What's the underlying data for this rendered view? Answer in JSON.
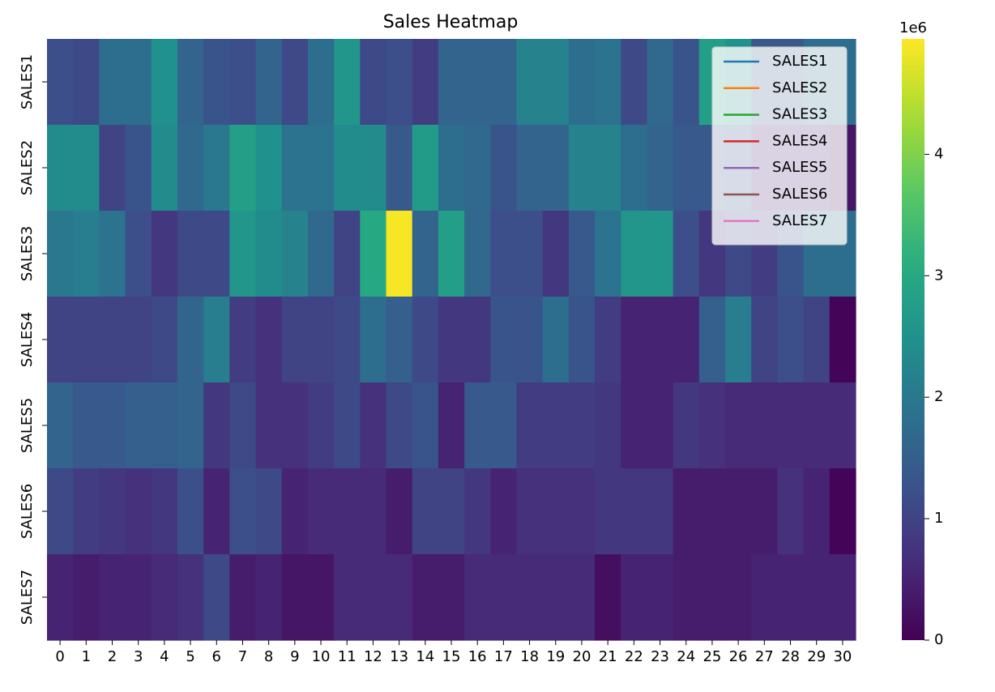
{
  "chart_data": {
    "type": "heatmap",
    "title": "Sales Heatmap",
    "xlabel": "",
    "ylabel": "",
    "x_categories": [
      "0",
      "1",
      "2",
      "3",
      "4",
      "5",
      "6",
      "7",
      "8",
      "9",
      "10",
      "11",
      "12",
      "13",
      "14",
      "15",
      "16",
      "17",
      "18",
      "19",
      "20",
      "21",
      "22",
      "23",
      "24",
      "25",
      "26",
      "27",
      "28",
      "29",
      "30"
    ],
    "y_categories": [
      "SALES1",
      "SALES2",
      "SALES3",
      "SALES4",
      "SALES5",
      "SALES6",
      "SALES7"
    ],
    "values": [
      [
        1.2,
        1.1,
        1.8,
        1.8,
        2.5,
        1.6,
        1.3,
        1.2,
        1.6,
        1.1,
        1.8,
        2.6,
        1.1,
        1.2,
        0.9,
        1.6,
        1.6,
        1.6,
        2.2,
        2.2,
        1.8,
        1.9,
        1.1,
        1.7,
        1.3,
        2.8,
        2.5,
        1.4,
        1.4,
        1.8,
        1.8
      ],
      [
        2.4,
        2.4,
        1.0,
        1.3,
        2.4,
        1.7,
        2.0,
        2.8,
        2.5,
        1.9,
        1.9,
        2.4,
        2.4,
        1.4,
        2.7,
        1.8,
        1.7,
        1.3,
        1.6,
        1.6,
        2.2,
        2.2,
        1.8,
        1.6,
        1.4,
        1.4,
        1.3,
        0.5,
        0.5,
        0.5,
        0.3
      ],
      [
        2.0,
        2.1,
        1.9,
        1.2,
        0.8,
        1.1,
        1.1,
        2.6,
        2.4,
        2.2,
        1.7,
        1.0,
        3.0,
        4.9,
        1.6,
        2.8,
        1.7,
        1.2,
        1.2,
        0.8,
        1.4,
        1.9,
        2.6,
        2.6,
        1.2,
        0.8,
        1.1,
        0.9,
        1.3,
        1.8,
        1.8
      ],
      [
        1.0,
        1.0,
        1.0,
        1.0,
        1.1,
        1.6,
        2.1,
        0.9,
        0.7,
        1.0,
        1.0,
        1.1,
        1.8,
        1.5,
        1.1,
        0.8,
        0.8,
        1.3,
        1.3,
        1.8,
        1.3,
        0.9,
        0.5,
        0.5,
        0.5,
        1.5,
        2.1,
        1.0,
        1.2,
        1.0,
        0.05
      ],
      [
        1.6,
        1.4,
        1.4,
        1.5,
        1.5,
        1.6,
        0.8,
        1.1,
        0.7,
        0.7,
        0.9,
        1.1,
        0.7,
        1.1,
        1.3,
        0.5,
        1.4,
        1.4,
        0.9,
        0.9,
        0.9,
        0.8,
        0.5,
        0.5,
        0.8,
        0.7,
        0.6,
        0.6,
        0.6,
        0.6,
        0.6
      ],
      [
        1.1,
        0.9,
        0.8,
        0.7,
        0.8,
        1.2,
        0.5,
        1.2,
        1.1,
        0.5,
        0.6,
        0.6,
        0.6,
        0.4,
        1.0,
        1.0,
        0.8,
        0.5,
        0.7,
        0.7,
        0.7,
        0.8,
        0.8,
        0.8,
        0.4,
        0.4,
        0.4,
        0.4,
        0.7,
        0.5,
        0.05
      ],
      [
        0.5,
        0.4,
        0.5,
        0.5,
        0.6,
        0.7,
        1.1,
        0.4,
        0.5,
        0.3,
        0.3,
        0.6,
        0.6,
        0.6,
        0.4,
        0.4,
        0.6,
        0.6,
        0.6,
        0.6,
        0.6,
        0.2,
        0.5,
        0.5,
        0.4,
        0.4,
        0.4,
        0.5,
        0.5,
        0.5,
        0.5
      ]
    ],
    "colorbar": {
      "range": [
        0,
        4.95
      ],
      "ticks": [
        "0",
        "1",
        "2",
        "3",
        "4"
      ],
      "tick_values": [
        0,
        1,
        2,
        3,
        4
      ],
      "scale_label": "1e6",
      "colormap": "viridis"
    },
    "legend": {
      "placement": "top-right",
      "entries": [
        {
          "name": "SALES1",
          "color": "#1f77b4"
        },
        {
          "name": "SALES2",
          "color": "#ff7f0e"
        },
        {
          "name": "SALES3",
          "color": "#2ca02c"
        },
        {
          "name": "SALES4",
          "color": "#d62728"
        },
        {
          "name": "SALES5",
          "color": "#9467bd"
        },
        {
          "name": "SALES6",
          "color": "#8c564b"
        },
        {
          "name": "SALES7",
          "color": "#e377c2"
        }
      ]
    }
  }
}
